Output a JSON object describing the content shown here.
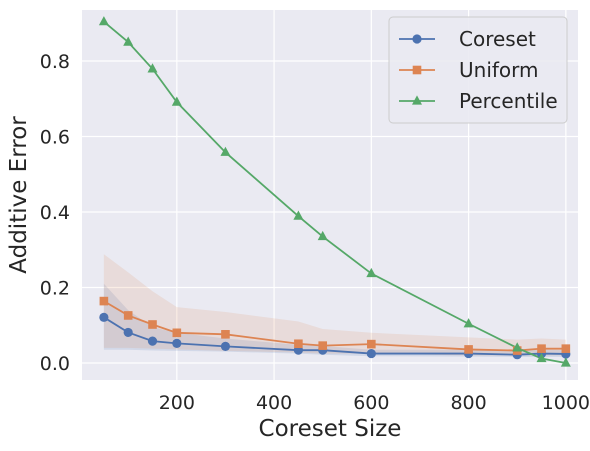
{
  "chart_data": {
    "type": "line",
    "title": "",
    "xlabel": "Coreset Size",
    "ylabel": "Additive Error",
    "xlim": [
      5,
      1025
    ],
    "ylim": [
      -0.045,
      0.935
    ],
    "xticks": [
      200,
      400,
      600,
      800,
      1000
    ],
    "yticks": [
      0.0,
      0.2,
      0.4,
      0.6,
      0.8
    ],
    "x_tick_labels": [
      "200",
      "400",
      "600",
      "800",
      "1000"
    ],
    "y_tick_labels": [
      "0.0",
      "0.2",
      "0.4",
      "0.6",
      "0.8"
    ],
    "grid": true,
    "legend_position": "top-right",
    "background_color": "#eaeaf2",
    "series": [
      {
        "name": "Coreset",
        "color": "#4c72b0",
        "marker": "circle",
        "x": [
          50,
          100,
          150,
          200,
          300,
          450,
          500,
          600,
          800,
          900,
          950,
          1000
        ],
        "y": [
          0.121,
          0.081,
          0.058,
          0.052,
          0.044,
          0.034,
          0.034,
          0.025,
          0.025,
          0.022,
          0.025,
          0.024
        ],
        "band_lower": [
          0.035,
          0.035,
          0.033,
          0.032,
          0.03,
          0.025,
          0.022,
          0.018,
          0.017,
          0.016,
          0.016,
          0.016
        ],
        "band_upper": [
          0.21,
          0.14,
          0.095,
          0.08,
          0.065,
          0.048,
          0.045,
          0.035,
          0.035,
          0.032,
          0.035,
          0.034
        ]
      },
      {
        "name": "Uniform",
        "color": "#dd8452",
        "marker": "square",
        "x": [
          50,
          100,
          150,
          200,
          300,
          450,
          500,
          600,
          800,
          900,
          950,
          1000
        ],
        "y": [
          0.164,
          0.126,
          0.102,
          0.08,
          0.076,
          0.051,
          0.046,
          0.05,
          0.036,
          0.033,
          0.038,
          0.038
        ],
        "band_lower": [
          0.04,
          0.04,
          0.038,
          0.036,
          0.032,
          0.028,
          0.025,
          0.025,
          0.02,
          0.02,
          0.02,
          0.02
        ],
        "band_upper": [
          0.288,
          0.24,
          0.19,
          0.148,
          0.135,
          0.11,
          0.09,
          0.08,
          0.068,
          0.062,
          0.065,
          0.062
        ]
      },
      {
        "name": "Percentile",
        "color": "#55a868",
        "marker": "triangle",
        "x": [
          50,
          100,
          150,
          200,
          300,
          450,
          500,
          600,
          800,
          900,
          950,
          1000
        ],
        "y": [
          0.904,
          0.85,
          0.779,
          0.691,
          0.558,
          0.389,
          0.335,
          0.237,
          0.104,
          0.04,
          0.012,
          0.0
        ]
      }
    ]
  }
}
